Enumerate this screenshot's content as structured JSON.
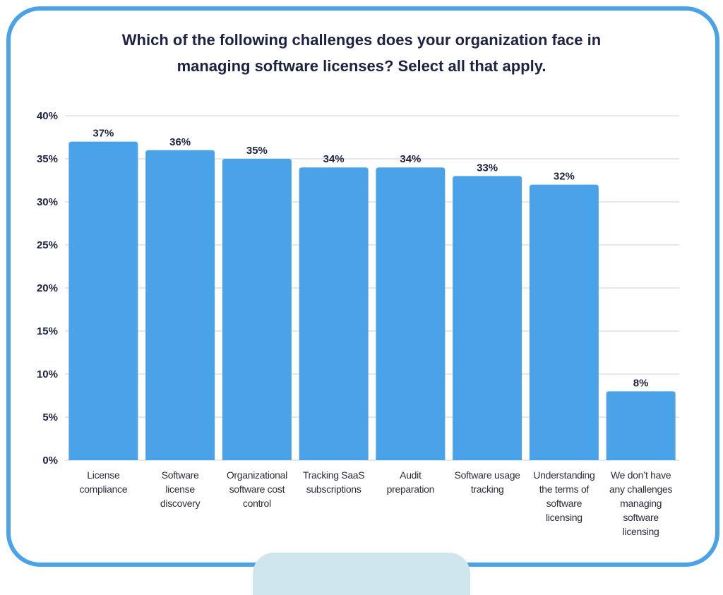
{
  "chart_data": {
    "type": "bar",
    "title": "Which of the following challenges does your organization face in\nmanaging software licenses? Select all that apply.",
    "categories": [
      "License\ncompliance",
      "Software\nlicense\ndiscovery",
      "Organizational\nsoftware cost\ncontrol",
      "Tracking SaaS\nsubscriptions",
      "Audit\npreparation",
      "Software usage\ntracking",
      "Understanding\nthe terms of\nsoftware\nlicensing",
      "We don’t have\nany challenges\nmanaging\nsoftware\nlicensing"
    ],
    "values": [
      37,
      36,
      35,
      34,
      34,
      33,
      32,
      8
    ],
    "data_labels": [
      "37%",
      "36%",
      "35%",
      "34%",
      "34%",
      "33%",
      "32%",
      "8%"
    ],
    "yticks": [
      "0%",
      "5%",
      "10%",
      "15%",
      "20%",
      "25%",
      "30%",
      "35%",
      "40%"
    ],
    "ylim": [
      0,
      40
    ],
    "grid": true,
    "bar_color": "#4aa3e8",
    "xlabel": "",
    "ylabel": ""
  }
}
